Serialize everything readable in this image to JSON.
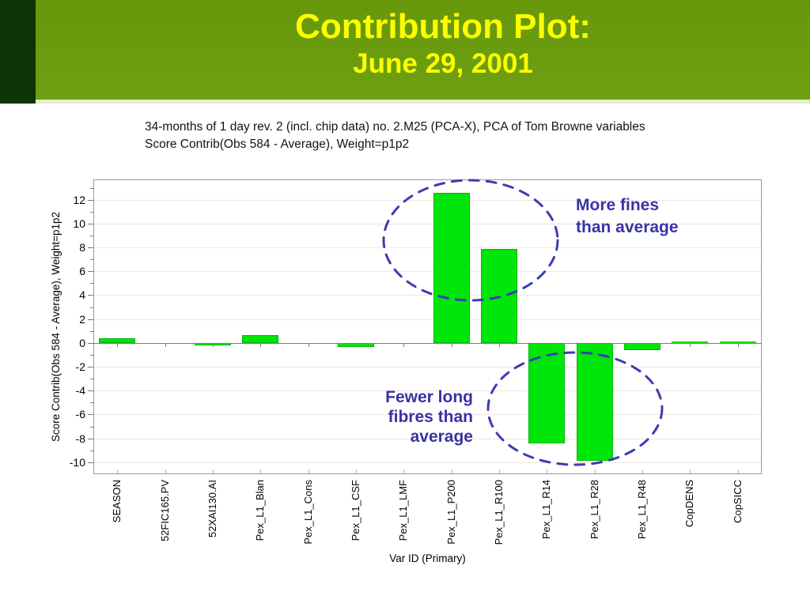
{
  "slide": {
    "title": "Contribution Plot:",
    "date": "June 29, 2001",
    "title_color": "#fcfe00",
    "header_bar_color_top": "#66970a",
    "header_bar_color_bottom": "#70a012",
    "header_strip_color": "#e3edcd",
    "header_accent_color": "#0c3406",
    "description_lines": [
      "34-months of 1 day rev. 2 (incl. chip data) no. 2.M25 (PCA-X), PCA of Tom Browne variables",
      "Score Contrib(Obs 584 - Average), Weight=p1p2"
    ]
  },
  "chart_data": {
    "type": "bar",
    "title": "",
    "xlabel": "Var ID (Primary)",
    "ylabel": "Score Contrib(Obs 584 - Average), Weight=p1p2",
    "categories": [
      "SEASON",
      "52FIC165.PV",
      "52XAI130.AI",
      "Pex_L1_Blan",
      "Pex_L1_Cons",
      "Pex_L1_CSF",
      "Pex_L1_LMF",
      "Pex_L1_P200",
      "Pex_L1_R100",
      "Pex_L1_R14",
      "Pex_L1_R28",
      "Pex_L1_R48",
      "CopDENS",
      "CopSICC"
    ],
    "values": [
      0.4,
      0.0,
      -0.2,
      0.65,
      -0.1,
      -0.35,
      0.0,
      12.6,
      7.9,
      -8.4,
      -9.9,
      -0.6,
      0.05,
      0.1
    ],
    "ylim": [
      -11,
      13.7
    ],
    "yticks": [
      -10,
      -8,
      -6,
      -4,
      -2,
      0,
      2,
      4,
      6,
      8,
      10,
      12
    ],
    "yticks_minor": [
      -9,
      -7,
      -5,
      -3,
      -1,
      1,
      3,
      5,
      7,
      9,
      11,
      13
    ],
    "grid": true,
    "legend": "none",
    "bar_color": "#00e60b",
    "bar_border_color": "#00b509",
    "gridline_color": "#f2e3e3",
    "axis_border_color": "#9a9a9a",
    "zero_line_color": "#7a7a7a",
    "tick_color": "#7a7a7a",
    "annotations": [
      {
        "id": "more-fines",
        "lines": [
          "More fines",
          "than average"
        ],
        "color": "#3933a4",
        "align": "left"
      },
      {
        "id": "fewer-long-fibres",
        "lines": [
          "Fewer long",
          "fibres than",
          "average"
        ],
        "color": "#3933a4",
        "align": "right"
      }
    ],
    "ellipse_color": "#3c3cb4"
  }
}
